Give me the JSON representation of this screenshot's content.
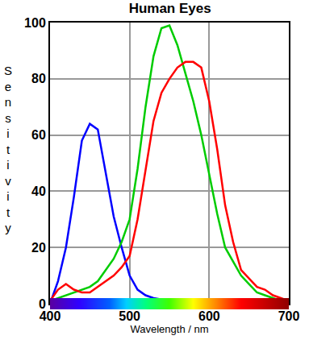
{
  "chart_data": {
    "type": "line",
    "title": "Human Eyes",
    "x_label": "Wavelength / nm",
    "y_label": "Sensitivity",
    "x": [
      400,
      410,
      420,
      430,
      440,
      450,
      460,
      470,
      480,
      490,
      500,
      510,
      520,
      530,
      540,
      550,
      560,
      570,
      580,
      590,
      600,
      610,
      620,
      630,
      640,
      650,
      660,
      670,
      680,
      690,
      700
    ],
    "series": [
      {
        "color": "#0000ff",
        "values": [
          0,
          8,
          20,
          38,
          58,
          64,
          62,
          47,
          31,
          20,
          10,
          5,
          3,
          2,
          1.5,
          1,
          1,
          1,
          1,
          1,
          1,
          1,
          1,
          1,
          1,
          1,
          1,
          1,
          1,
          1,
          1
        ]
      },
      {
        "color": "#00cc00",
        "values": [
          1,
          2,
          3,
          4,
          5,
          6,
          8,
          12,
          16,
          22,
          30,
          48,
          70,
          88,
          98,
          99,
          92,
          82,
          72,
          60,
          46,
          32,
          20,
          15,
          10,
          7,
          4,
          3,
          2,
          1,
          1
        ]
      },
      {
        "color": "#ff0000",
        "values": [
          1,
          5,
          7,
          5,
          4,
          4,
          6,
          8,
          10,
          13,
          17,
          30,
          48,
          65,
          75,
          80,
          84,
          86,
          86,
          84,
          72,
          55,
          35,
          22,
          12,
          9,
          6,
          5,
          3,
          2,
          1
        ]
      }
    ],
    "xlim": [
      400,
      700
    ],
    "xticks": [
      400,
      500,
      600,
      700
    ],
    "ylim": [
      0,
      100
    ],
    "yticks": [
      0,
      20,
      40,
      60,
      80,
      100
    ],
    "grid": true
  }
}
